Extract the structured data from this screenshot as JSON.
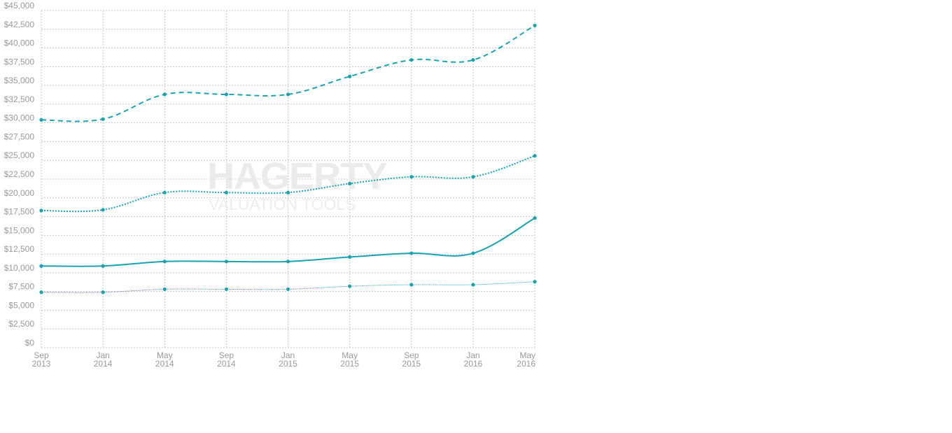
{
  "watermark": {
    "brand": "HAGERTY",
    "registered": "®",
    "subtitle": "VALUATION TOOLS"
  },
  "chart_data": {
    "type": "line",
    "title": "",
    "xlabel": "",
    "ylabel": "",
    "ylim": [
      0,
      45000
    ],
    "yticks": [
      0,
      2500,
      5000,
      7500,
      10000,
      12500,
      15000,
      17500,
      20000,
      22500,
      25000,
      27500,
      30000,
      32500,
      35000,
      37500,
      40000,
      42500,
      45000
    ],
    "ytick_labels": [
      "$0",
      "$2,500",
      "$5,000",
      "$7,500",
      "$10,000",
      "$12,500",
      "$15,000",
      "$17,500",
      "$20,000",
      "$22,500",
      "$25,000",
      "$27,500",
      "$30,000",
      "$32,500",
      "$35,000",
      "$37,500",
      "$40,000",
      "$42,500",
      "$45,000"
    ],
    "x": [
      "2013-09",
      "2014-01",
      "2014-05",
      "2014-09",
      "2015-01",
      "2015-05",
      "2015-09",
      "2016-01",
      "2016-05"
    ],
    "x_tick_labels": [
      [
        "Sep",
        "2013"
      ],
      [
        "Jan",
        "2014"
      ],
      [
        "May",
        "2014"
      ],
      [
        "Sep",
        "2014"
      ],
      [
        "Jan",
        "2015"
      ],
      [
        "May",
        "2015"
      ],
      [
        "Sep",
        "2015"
      ],
      [
        "Jan",
        "2016"
      ],
      [
        "May",
        "2016"
      ]
    ],
    "grid": true,
    "color": "#1aa3b2",
    "series": [
      {
        "style": "dashed",
        "values": [
          30400,
          30500,
          33800,
          33800,
          33800,
          36200,
          38400,
          38400,
          43000
        ]
      },
      {
        "style": "dotted",
        "values": [
          18300,
          18400,
          20700,
          20700,
          20700,
          21900,
          22800,
          22800,
          25600
        ]
      },
      {
        "style": "solid",
        "values": [
          10900,
          10900,
          11500,
          11500,
          11500,
          12100,
          12600,
          12600,
          17300
        ]
      },
      {
        "style": "thin",
        "values": [
          7400,
          7400,
          7800,
          7800,
          7800,
          8200,
          8400,
          8400,
          8800
        ]
      }
    ]
  }
}
